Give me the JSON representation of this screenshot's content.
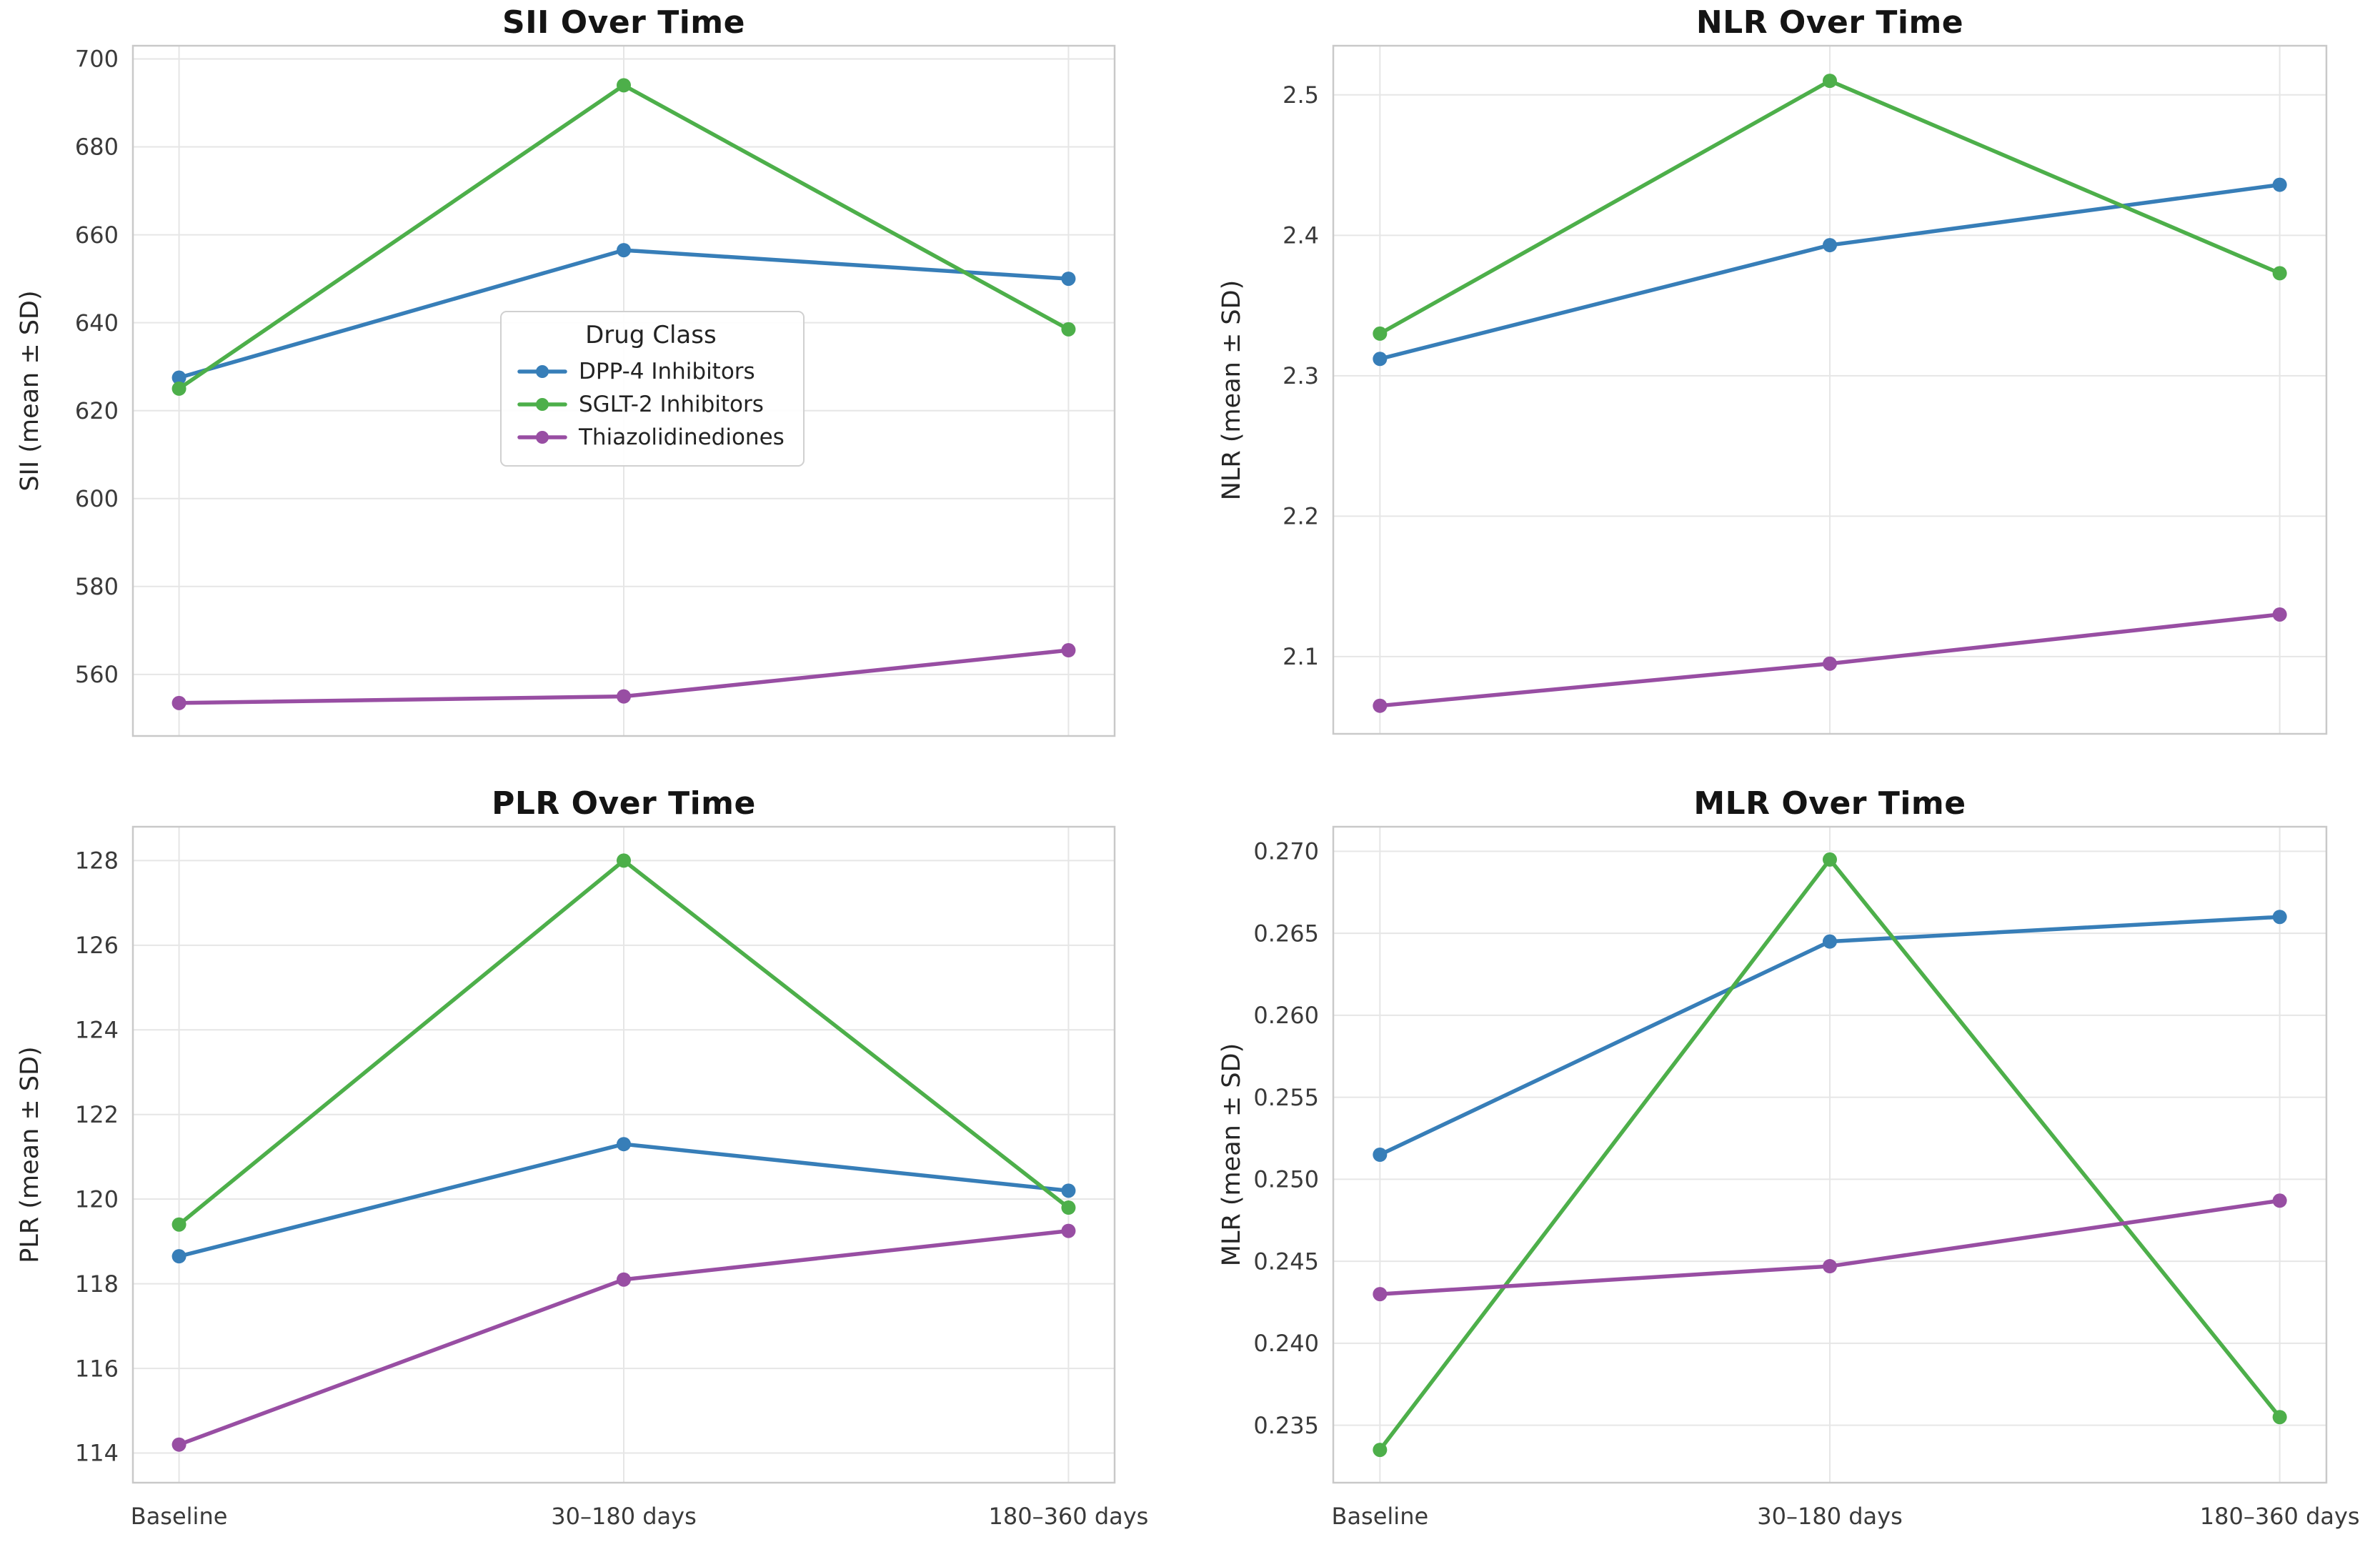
{
  "palette": {
    "blue": "#377eb8",
    "green": "#4daf4a",
    "purple": "#984ea3",
    "grid": "#e6e6e6",
    "spine": "#c9c9c9",
    "tick_text": "#3a3a3a",
    "title_text": "#141414",
    "background": "#ffffff"
  },
  "legend": {
    "title": "Drug Class"
  },
  "chart_data": [
    {
      "id": "sii",
      "type": "line",
      "title": "SII Over Time",
      "ylabel": "SII (mean ± SD)",
      "categories": [
        "Baseline",
        "30–180 days",
        "180–360 days"
      ],
      "show_x_tick_labels": false,
      "grid": true,
      "legend_visible": true,
      "legend_position": "center",
      "ylim": [
        546,
        703
      ],
      "yticks": [
        560,
        580,
        600,
        620,
        640,
        660,
        680,
        700
      ],
      "ytick_labels": [
        "560",
        "580",
        "600",
        "620",
        "640",
        "660",
        "680",
        "700"
      ],
      "series": [
        {
          "name": "DPP-4 Inhibitors",
          "color": "#377eb8",
          "values": [
            627.5,
            656.5,
            650.0
          ]
        },
        {
          "name": "SGLT-2 Inhibitors",
          "color": "#4daf4a",
          "values": [
            625.0,
            694.0,
            638.5
          ]
        },
        {
          "name": "Thiazolidinediones",
          "color": "#984ea3",
          "values": [
            553.5,
            555.0,
            565.5
          ]
        }
      ]
    },
    {
      "id": "nlr",
      "type": "line",
      "title": "NLR Over Time",
      "ylabel": "NLR (mean ± SD)",
      "categories": [
        "Baseline",
        "30–180 days",
        "180–360 days"
      ],
      "show_x_tick_labels": false,
      "grid": true,
      "legend_visible": false,
      "ylim": [
        2.045,
        2.535
      ],
      "yticks": [
        2.1,
        2.2,
        2.3,
        2.4,
        2.5
      ],
      "ytick_labels": [
        "2.1",
        "2.2",
        "2.3",
        "2.4",
        "2.5"
      ],
      "series": [
        {
          "name": "DPP-4 Inhibitors",
          "color": "#377eb8",
          "values": [
            2.312,
            2.393,
            2.436
          ]
        },
        {
          "name": "SGLT-2 Inhibitors",
          "color": "#4daf4a",
          "values": [
            2.33,
            2.51,
            2.373
          ]
        },
        {
          "name": "Thiazolidinediones",
          "color": "#984ea3",
          "values": [
            2.065,
            2.095,
            2.13
          ]
        }
      ]
    },
    {
      "id": "plr",
      "type": "line",
      "title": "PLR Over Time",
      "ylabel": "PLR (mean ± SD)",
      "categories": [
        "Baseline",
        "30–180 days",
        "180–360 days"
      ],
      "show_x_tick_labels": true,
      "grid": true,
      "legend_visible": false,
      "ylim": [
        113.3,
        128.8
      ],
      "yticks": [
        114,
        116,
        118,
        120,
        122,
        124,
        126,
        128
      ],
      "ytick_labels": [
        "114",
        "116",
        "118",
        "120",
        "122",
        "124",
        "126",
        "128"
      ],
      "series": [
        {
          "name": "DPP-4 Inhibitors",
          "color": "#377eb8",
          "values": [
            118.65,
            121.3,
            120.2
          ]
        },
        {
          "name": "SGLT-2 Inhibitors",
          "color": "#4daf4a",
          "values": [
            119.4,
            128.0,
            119.8
          ]
        },
        {
          "name": "Thiazolidinediones",
          "color": "#984ea3",
          "values": [
            114.2,
            118.1,
            119.25
          ]
        }
      ]
    },
    {
      "id": "mlr",
      "type": "line",
      "title": "MLR Over Time",
      "ylabel": "MLR (mean ± SD)",
      "categories": [
        "Baseline",
        "30–180 days",
        "180–360 days"
      ],
      "show_x_tick_labels": true,
      "grid": true,
      "legend_visible": false,
      "ylim": [
        0.2315,
        0.2715
      ],
      "yticks": [
        0.235,
        0.24,
        0.245,
        0.25,
        0.255,
        0.26,
        0.265,
        0.27
      ],
      "ytick_labels": [
        "0.235",
        "0.240",
        "0.245",
        "0.250",
        "0.255",
        "0.260",
        "0.265",
        "0.270"
      ],
      "series": [
        {
          "name": "DPP-4 Inhibitors",
          "color": "#377eb8",
          "values": [
            0.2515,
            0.2645,
            0.266
          ]
        },
        {
          "name": "SGLT-2 Inhibitors",
          "color": "#4daf4a",
          "values": [
            0.2335,
            0.2695,
            0.2355
          ]
        },
        {
          "name": "Thiazolidinediones",
          "color": "#984ea3",
          "values": [
            0.243,
            0.2447,
            0.2487
          ]
        }
      ]
    }
  ]
}
